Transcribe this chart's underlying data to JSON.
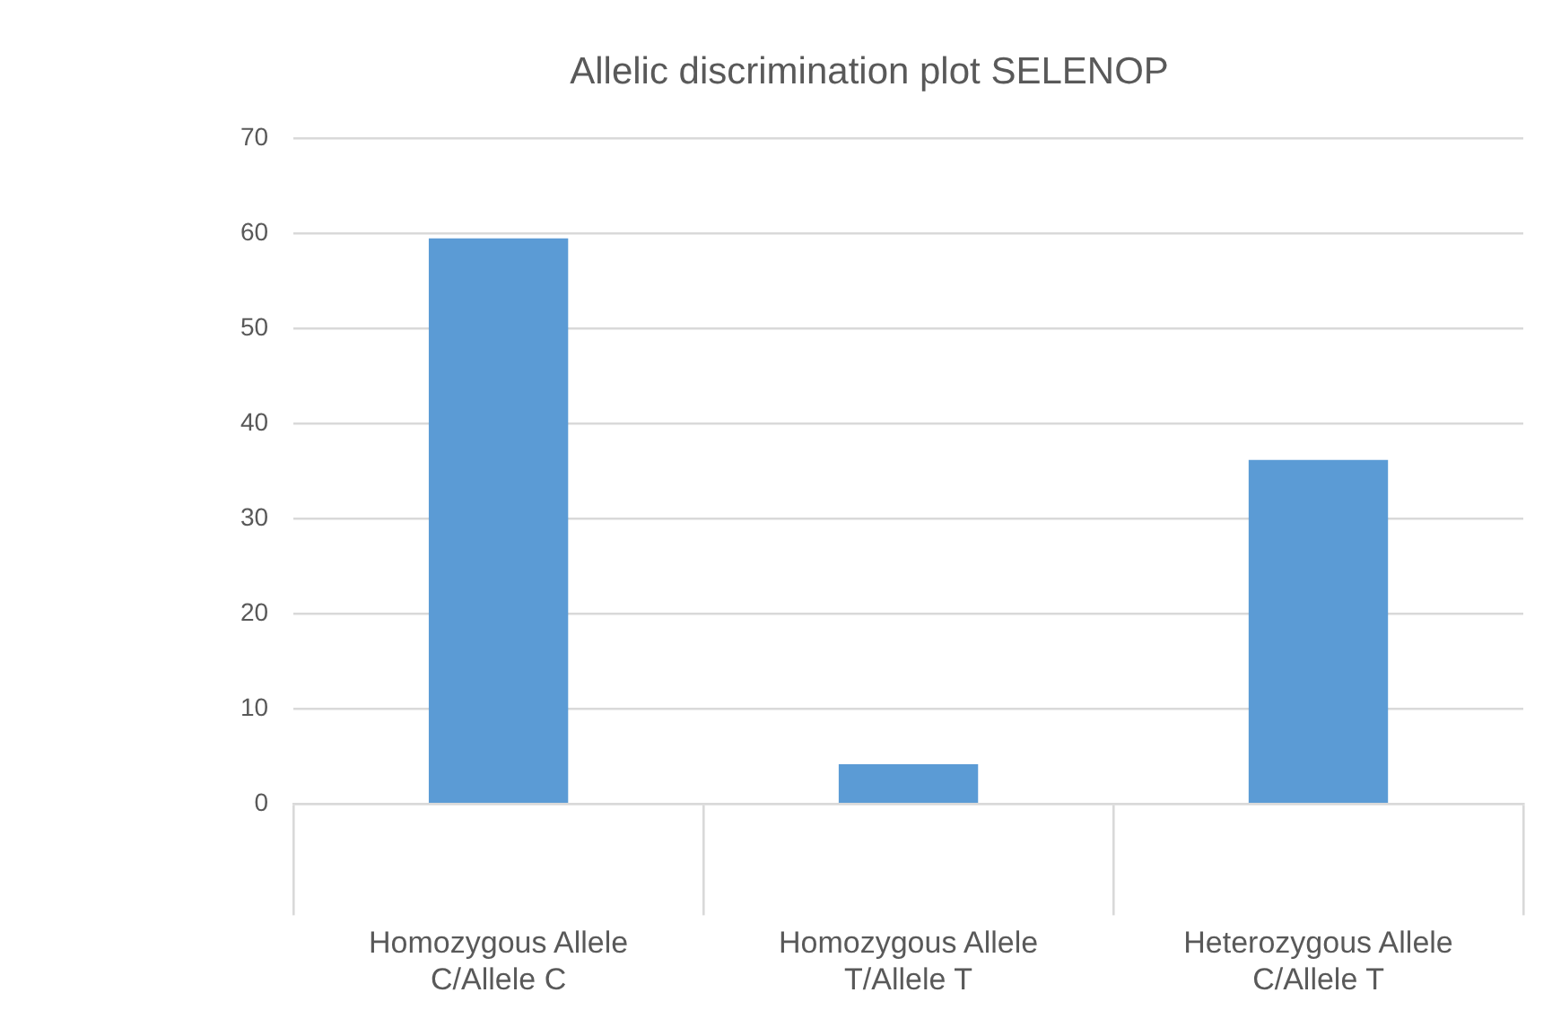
{
  "chart_data": {
    "type": "bar",
    "title": "Allelic discrimination plot SELENOP",
    "categories": [
      "Homozygous Allele C/Allele C",
      "Homozygous Allele T/Allele T",
      "Heterozygous Allele C/Allele T"
    ],
    "values": [
      59.5,
      4.2,
      36.2
    ],
    "color": "#5b9bd5",
    "ylim": [
      0,
      70
    ],
    "yticks": [
      0,
      10,
      20,
      30,
      40,
      50,
      60,
      70
    ],
    "grid": "y",
    "legend": false
  }
}
